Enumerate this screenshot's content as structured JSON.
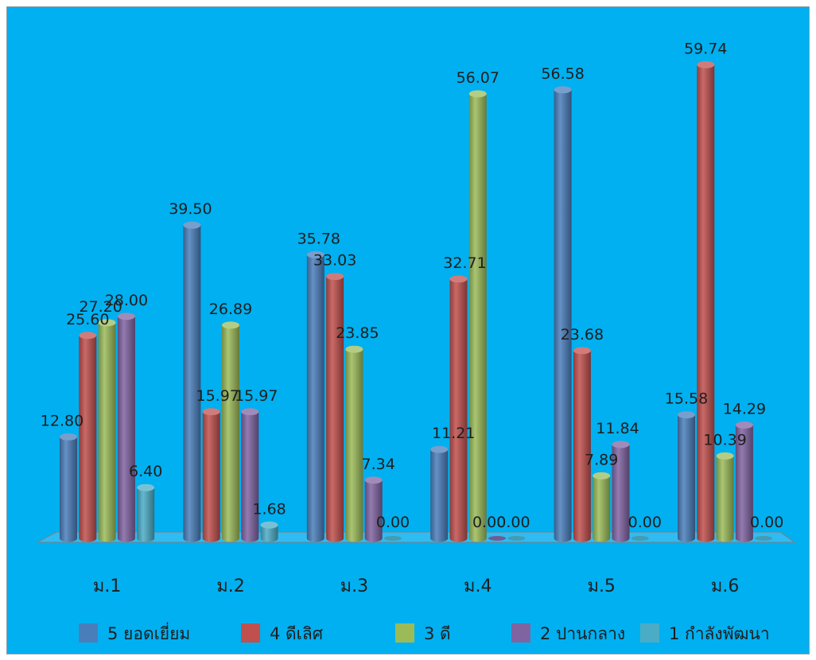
{
  "chart_data": {
    "type": "bar",
    "categories": [
      "ม.1",
      "ม.2",
      "ม.3",
      "ม.4",
      "ม.5",
      "ม.6"
    ],
    "series": [
      {
        "name": "5 ยอดเยี่ยม",
        "color": "#4A7EBB",
        "values": [
          12.8,
          39.5,
          35.78,
          11.21,
          56.58,
          15.58
        ]
      },
      {
        "name": "4 ดีเลิศ",
        "color": "#C0504D",
        "values": [
          25.6,
          15.97,
          33.03,
          32.71,
          23.68,
          59.74
        ]
      },
      {
        "name": "3 ดี",
        "color": "#9BBB59",
        "values": [
          27.2,
          26.89,
          23.85,
          56.07,
          7.89,
          10.39
        ]
      },
      {
        "name": "2 ปานกลาง",
        "color": "#8064A2",
        "values": [
          28.0,
          15.97,
          7.34,
          0.0,
          11.84,
          14.29
        ]
      },
      {
        "name": "1 กำลังพัฒนา",
        "color": "#4BACC6",
        "values": [
          6.4,
          1.68,
          0.0,
          0.0,
          0.0,
          0.0
        ]
      }
    ],
    "data_labels": [
      [
        "12.80",
        "39.50",
        "35.78",
        "11.21",
        "56.58",
        "15.58"
      ],
      [
        "25.60",
        "15.97",
        "33.03",
        "32.71",
        "23.68",
        "59.74"
      ],
      [
        "27.20",
        "26.89",
        "23.85",
        "56.07",
        "7.89",
        "10.39"
      ],
      [
        "28.00",
        "15.97",
        "7.34",
        "0.00",
        "11.84",
        "14.29"
      ],
      [
        "6.40",
        "1.68",
        "0.00",
        "0.00",
        "0.00",
        "0.00"
      ]
    ],
    "ylim": [
      0,
      62
    ],
    "grid": false,
    "legend_position": "bottom",
    "background_color": "#00B0F0"
  }
}
